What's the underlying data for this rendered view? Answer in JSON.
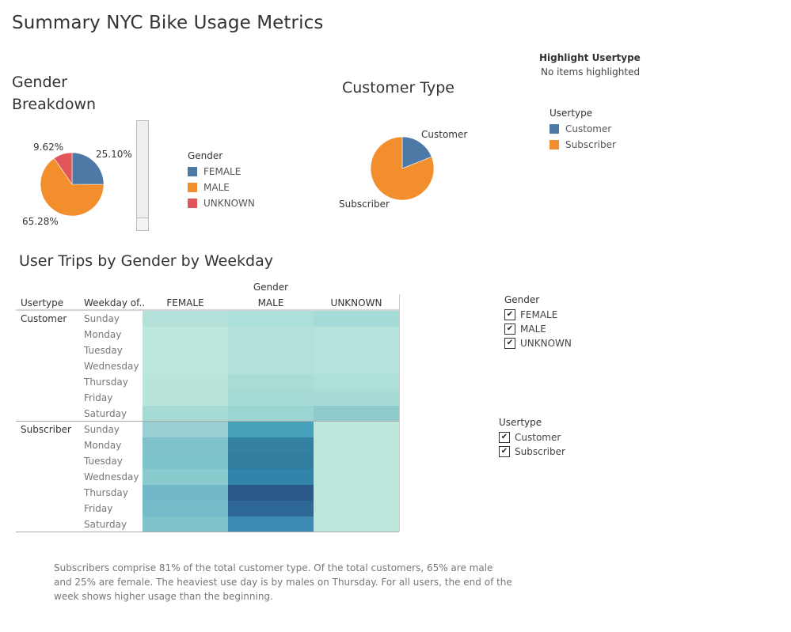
{
  "dashboard": {
    "title": "Summary NYC Bike Usage Metrics"
  },
  "gender_breakdown": {
    "title_line1": "Gender",
    "title_line2": "Breakdown",
    "labels": {
      "female": "25.10%",
      "unknown": "9.62%",
      "male": "65.28%"
    }
  },
  "gender_legend": {
    "title": "Gender",
    "items": [
      {
        "label": "FEMALE",
        "color": "#4e79a7"
      },
      {
        "label": "MALE",
        "color": "#f28e2b"
      },
      {
        "label": "UNKNOWN",
        "color": "#e15759"
      }
    ]
  },
  "customer_type": {
    "title": "Customer Type",
    "labels": {
      "customer": "Customer",
      "subscriber": "Subscriber"
    }
  },
  "highlight": {
    "title": "Highlight Usertype",
    "value": "No items highlighted"
  },
  "usertype_legend": {
    "title": "Usertype",
    "items": [
      {
        "label": "Customer",
        "color": "#4e79a7"
      },
      {
        "label": "Subscriber",
        "color": "#f28e2b"
      }
    ]
  },
  "heatmap": {
    "title": "User Trips by Gender by Weekday",
    "col_group_header": "Gender",
    "row_header_usertype": "Usertype",
    "row_header_weekday": "Weekday of..",
    "columns": [
      "FEMALE",
      "MALE",
      "UNKNOWN"
    ],
    "groups": [
      {
        "name": "Customer",
        "days": [
          "Sunday",
          "Monday",
          "Tuesday",
          "Wednesday",
          "Thursday",
          "Friday",
          "Saturday"
        ],
        "colors": [
          [
            "#b3e0d8",
            "#ade0da",
            "#a6dcd8"
          ],
          [
            "#bde6dc",
            "#b3e1d9",
            "#b5e3dc"
          ],
          [
            "#bde6dc",
            "#b3e1d9",
            "#b6e3dc"
          ],
          [
            "#bde6dc",
            "#b1e1d9",
            "#b5e3dc"
          ],
          [
            "#b8e4da",
            "#aadcd6",
            "#afdfd9"
          ],
          [
            "#b8e4da",
            "#a6dad5",
            "#a8dbd5"
          ],
          [
            "#a6dad5",
            "#9ad5d2",
            "#8ecbcd"
          ]
        ]
      },
      {
        "name": "Subscriber",
        "days": [
          "Sunday",
          "Monday",
          "Tuesday",
          "Wednesday",
          "Thursday",
          "Friday",
          "Saturday"
        ],
        "colors": [
          [
            "#9ccfd3",
            "#45a0b9",
            "#bde6dc"
          ],
          [
            "#7fc2cb",
            "#3380a3",
            "#bde6dc"
          ],
          [
            "#7ec2cb",
            "#327ca0",
            "#bde6dc"
          ],
          [
            "#8accce",
            "#3185ab",
            "#bde6dc"
          ],
          [
            "#72b8c8",
            "#2b5a88",
            "#bde6dc"
          ],
          [
            "#75bbca",
            "#2e6897",
            "#bde6dc"
          ],
          [
            "#80c2cc",
            "#3d8bb5",
            "#bde6dc"
          ]
        ]
      }
    ]
  },
  "filter_gender": {
    "title": "Gender",
    "items": [
      "FEMALE",
      "MALE",
      "UNKNOWN"
    ]
  },
  "filter_usertype": {
    "title": "Usertype",
    "items": [
      "Customer",
      "Subscriber"
    ]
  },
  "caption": {
    "text": "Subscribers comprise 81% of the total customer type.  Of the total customers, 65% are male and 25% are female.   The heaviest use day is by males on Thursday.  For all users, the end of the week shows higher usage than the beginning."
  },
  "chart_data": [
    {
      "type": "pie",
      "name_source": "Gender Breakdown",
      "slices": [
        {
          "label": "FEMALE",
          "value": 25.1,
          "color": "#4e79a7"
        },
        {
          "label": "MALE",
          "value": 65.28,
          "color": "#f28e2b"
        },
        {
          "label": "UNKNOWN",
          "value": 9.62,
          "color": "#e15759"
        }
      ]
    },
    {
      "type": "pie",
      "name_source": "Customer Type",
      "slices": [
        {
          "label": "Customer",
          "value": 19,
          "color": "#4e79a7"
        },
        {
          "label": "Subscriber",
          "value": 81,
          "color": "#f28e2b"
        }
      ]
    }
  ]
}
